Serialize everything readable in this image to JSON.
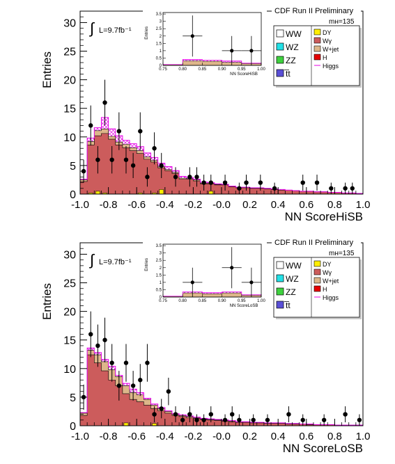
{
  "colors": {
    "WW": "#ffffff",
    "WZ": "#22e0e6",
    "ZZ": "#3ed13e",
    "tt": "#5a4fd6",
    "DY": "#ffee00",
    "Wgamma": "#cc5c5c",
    "Wjet": "#ddb68a",
    "H": "#e60000",
    "Higgs": "#e600e6",
    "data": "#000000"
  },
  "charts": [
    {
      "type": "bar",
      "experiment": "CDF Run II Preliminary",
      "lumi": "L=9.7fb⁻¹",
      "mass": "mʜ=135",
      "ylabel": "Entries",
      "xlabel": "NN ScoreHiSB",
      "xlim": [
        -1.0,
        1.0
      ],
      "ylim": [
        0,
        32
      ],
      "xticks": [
        "-1.0",
        "-0.8",
        "-0.6",
        "-0.4",
        "-0.2",
        "-0.0",
        "0.2",
        "0.4",
        "0.6",
        "0.8",
        "1.0"
      ],
      "yticks": [
        "0",
        "5",
        "10",
        "15",
        "20",
        "25",
        "30"
      ],
      "legend": {
        "col1": [
          {
            "label": "WW",
            "key": "WW"
          },
          {
            "label": "WZ",
            "key": "WZ"
          },
          {
            "label": "ZZ",
            "key": "ZZ"
          },
          {
            "label": "t̅t",
            "key": "tt"
          }
        ],
        "col2": [
          {
            "label": "DY",
            "key": "DY"
          },
          {
            "label": "Wγ",
            "key": "Wgamma"
          },
          {
            "label": "W+jet",
            "key": "Wjet"
          },
          {
            "label": "H",
            "key": "H"
          },
          {
            "label": "Higgs",
            "key": "Higgs"
          }
        ]
      },
      "chart_data": {
        "type": "bar",
        "bin_edges": [
          -1.0,
          -0.95,
          -0.9,
          -0.85,
          -0.8,
          -0.75,
          -0.7,
          -0.65,
          -0.6,
          -0.55,
          -0.5,
          -0.45,
          -0.4,
          -0.35,
          -0.3,
          -0.25,
          -0.2,
          -0.15,
          -0.1,
          -0.05,
          0.0,
          0.05,
          0.1,
          0.15,
          0.2,
          0.25,
          0.3,
          0.35,
          0.4,
          0.45,
          0.5,
          0.55,
          0.6,
          0.65,
          0.7,
          0.75,
          0.8,
          0.85,
          0.9,
          0.95,
          1.0
        ],
        "series": [
          {
            "name": "Wγ",
            "values": [
              2.2,
              8.6,
              10.2,
              10.6,
              9.6,
              8.6,
              8.1,
              7.6,
              7.1,
              6.1,
              5.6,
              4.6,
              4.1,
              3.6,
              2.6,
              2.6,
              2.3,
              1.8,
              1.8,
              1.6,
              1.6,
              1.3,
              1.1,
              1.1,
              1.0,
              1.0,
              0.9,
              0.8,
              0.7,
              0.7,
              0.6,
              0.5,
              0.5,
              0.4,
              0.4,
              0.3,
              0.3,
              0.2,
              0.2,
              0.1
            ]
          },
          {
            "name": "W+jet",
            "values": [
              0.3,
              0.6,
              0.9,
              0.8,
              0.5,
              0.5,
              0.6,
              0.5,
              0.5,
              0.4,
              0.3,
              0.2,
              0.2,
              0.2,
              0.2,
              0.1,
              0.2,
              0.1,
              0.1,
              0.1,
              0.1,
              0.1,
              0.1,
              0.1,
              0.0,
              0.0,
              0.0,
              0.0,
              0.0,
              0.0,
              0.0,
              0.0,
              0.0,
              0.0,
              0.0,
              0.0,
              0.0,
              0.0,
              0.0,
              0.0
            ]
          },
          {
            "name": "DY",
            "values": [
              0.0,
              0.2,
              0.5,
              0.2,
              0.0,
              0.0,
              0.0,
              0.0,
              0.2,
              0.0,
              0.2,
              0.8,
              0.0,
              0.0,
              0.0,
              0.0,
              0.0,
              0.0,
              0.5,
              0.0,
              0.0,
              0.0,
              0.0,
              0.0,
              0.0,
              0.0,
              0.0,
              0.0,
              0.0,
              0.0,
              0.0,
              0.0,
              0.0,
              0.0,
              0.0,
              0.0,
              0.0,
              0.0,
              0.0,
              0.0
            ]
          },
          {
            "name": "Higgs",
            "values": [
              2.6,
              9.8,
              11.6,
              13.4,
              11.4,
              10.2,
              9.4,
              8.8,
              8.3,
              7.2,
              6.4,
              5.4,
              4.8,
              4.1,
              3.1,
              2.9,
              2.6,
              2.1,
              2.0,
              1.8,
              1.7,
              1.4,
              1.2,
              1.2,
              1.1,
              1.1,
              1.0,
              0.9,
              0.8,
              0.7,
              0.6,
              0.5,
              0.5,
              0.4,
              0.4,
              0.3,
              0.3,
              0.2,
              0.2,
              0.1
            ]
          }
        ],
        "data_points": [
          {
            "x": -0.975,
            "y": 4,
            "err": 2
          },
          {
            "x": -0.925,
            "y": 12,
            "err": 3.5
          },
          {
            "x": -0.875,
            "y": 6,
            "err": 2.4
          },
          {
            "x": -0.825,
            "y": 16,
            "err": 4
          },
          {
            "x": -0.775,
            "y": 6,
            "err": 2.4
          },
          {
            "x": -0.725,
            "y": 11,
            "err": 3.3
          },
          {
            "x": -0.675,
            "y": 6,
            "err": 2.4
          },
          {
            "x": -0.625,
            "y": 5,
            "err": 2.2
          },
          {
            "x": -0.575,
            "y": 11,
            "err": 3.3
          },
          {
            "x": -0.525,
            "y": 3,
            "err": 1.7
          },
          {
            "x": -0.475,
            "y": 8,
            "err": 2.8
          },
          {
            "x": -0.425,
            "y": 5,
            "err": 2.2
          },
          {
            "x": -0.325,
            "y": 3,
            "err": 1.7
          },
          {
            "x": -0.225,
            "y": 3,
            "err": 1.7
          },
          {
            "x": -0.175,
            "y": 3,
            "err": 1.7
          },
          {
            "x": -0.125,
            "y": 2,
            "err": 1.4
          },
          {
            "x": -0.075,
            "y": 2,
            "err": 1.4
          },
          {
            "x": 0.025,
            "y": 2,
            "err": 1.4
          },
          {
            "x": 0.125,
            "y": 1,
            "err": 1
          },
          {
            "x": 0.175,
            "y": 2,
            "err": 1.4
          },
          {
            "x": 0.275,
            "y": 2,
            "err": 1.4
          },
          {
            "x": 0.375,
            "y": 1,
            "err": 1
          },
          {
            "x": 0.575,
            "y": 2,
            "err": 1.4
          },
          {
            "x": 0.675,
            "y": 2,
            "err": 1.4
          },
          {
            "x": 0.775,
            "y": 1,
            "err": 1
          },
          {
            "x": 0.875,
            "y": 1,
            "err": 1
          },
          {
            "x": 0.925,
            "y": 1,
            "err": 1
          }
        ]
      },
      "inset": {
        "ylabel": "Entries",
        "xlabel": "NN ScoreHiSB",
        "xlim": [
          0.75,
          1.0
        ],
        "ylim": [
          0,
          3.6
        ],
        "xticks": [
          "0.75",
          "0.80",
          "0.85",
          "0.90",
          "0.95",
          "1.00"
        ],
        "yticks": [
          "0",
          "0.5",
          "1",
          "1.5",
          "2",
          "2.5",
          "3",
          "3.5"
        ],
        "bin_edges": [
          0.75,
          0.8,
          0.85,
          0.9,
          0.95,
          1.0
        ],
        "stack": [
          0.05,
          0.3,
          0.28,
          0.2,
          0.12
        ],
        "higgs": [
          0.06,
          0.4,
          0.35,
          0.3,
          0.15
        ],
        "data_points": [
          {
            "x": 0.825,
            "y": 2,
            "err": 1.4
          },
          {
            "x": 0.925,
            "y": 1,
            "err": 1
          },
          {
            "x": 0.975,
            "y": 1,
            "err": 1
          }
        ]
      }
    },
    {
      "type": "bar",
      "experiment": "CDF Run II Preliminary",
      "lumi": "L=9.7fb⁻¹",
      "mass": "mʜ=135",
      "ylabel": "Entries",
      "xlabel": "NN ScoreLoSB",
      "xlim": [
        -1.0,
        1.0
      ],
      "ylim": [
        0,
        32
      ],
      "xticks": [
        "-1.0",
        "-0.8",
        "-0.6",
        "-0.4",
        "-0.2",
        "-0.0",
        "0.2",
        "0.4",
        "0.6",
        "0.8",
        "1.0"
      ],
      "yticks": [
        "0",
        "5",
        "10",
        "15",
        "20",
        "25",
        "30"
      ],
      "legend": {
        "col1": [
          {
            "label": "WW",
            "key": "WW"
          },
          {
            "label": "WZ",
            "key": "WZ"
          },
          {
            "label": "ZZ",
            "key": "ZZ"
          },
          {
            "label": "t̅t",
            "key": "tt"
          }
        ],
        "col2": [
          {
            "label": "DY",
            "key": "DY"
          },
          {
            "label": "Wγ",
            "key": "Wgamma"
          },
          {
            "label": "W+jet",
            "key": "Wjet"
          },
          {
            "label": "H",
            "key": "H"
          },
          {
            "label": "Higgs",
            "key": "Higgs"
          }
        ]
      },
      "chart_data": {
        "type": "bar",
        "bin_edges": [
          -1.0,
          -0.95,
          -0.9,
          -0.85,
          -0.8,
          -0.75,
          -0.7,
          -0.65,
          -0.6,
          -0.55,
          -0.5,
          -0.45,
          -0.4,
          -0.35,
          -0.3,
          -0.25,
          -0.2,
          -0.15,
          -0.1,
          -0.05,
          0.0,
          0.05,
          0.1,
          0.15,
          0.2,
          0.25,
          0.3,
          0.35,
          0.4,
          0.45,
          0.5,
          0.55,
          0.6,
          0.65,
          0.7,
          0.75,
          0.8,
          0.85,
          0.9,
          0.95,
          1.0
        ],
        "series": [
          {
            "name": "Wγ",
            "values": [
              1.8,
              12.4,
              11.0,
              9.6,
              8.0,
              7.0,
              5.6,
              4.6,
              4.2,
              3.6,
              3.0,
              2.6,
              2.2,
              1.8,
              1.6,
              1.4,
              1.3,
              1.1,
              1.0,
              0.9,
              0.8,
              0.7,
              0.6,
              0.6,
              0.5,
              0.5,
              0.4,
              0.4,
              0.4,
              0.3,
              0.3,
              0.3,
              0.2,
              0.2,
              0.2,
              0.2,
              0.1,
              0.1,
              0.1,
              0.1
            ]
          },
          {
            "name": "W+jet",
            "values": [
              0.4,
              0.8,
              1.4,
              1.6,
              1.8,
              1.6,
              1.4,
              1.2,
              1.2,
              1.0,
              0.6,
              0.4,
              0.3,
              0.2,
              0.2,
              0.2,
              0.1,
              0.1,
              0.1,
              0.1,
              0.1,
              0.1,
              0.0,
              0.0,
              0.0,
              0.0,
              0.0,
              0.0,
              0.0,
              0.0,
              0.0,
              0.0,
              0.0,
              0.0,
              0.0,
              0.0,
              0.0,
              0.0,
              0.0,
              0.0
            ]
          },
          {
            "name": "DY",
            "values": [
              0.0,
              0.0,
              0.0,
              0.0,
              0.0,
              0.0,
              0.5,
              0.0,
              0.0,
              0.0,
              0.4,
              0.0,
              0.0,
              0.0,
              0.0,
              0.0,
              0.0,
              0.0,
              0.0,
              0.0,
              0.0,
              0.0,
              0.0,
              0.0,
              0.0,
              0.0,
              0.0,
              0.0,
              0.0,
              0.0,
              0.0,
              0.0,
              0.0,
              0.0,
              0.0,
              0.0,
              0.0,
              0.0,
              0.0,
              0.0
            ]
          },
          {
            "name": "Higgs",
            "values": [
              2.3,
              13.6,
              12.8,
              11.6,
              10.4,
              8.8,
              7.4,
              6.4,
              5.8,
              4.8,
              3.8,
              3.2,
              2.6,
              2.1,
              1.9,
              1.7,
              1.5,
              1.3,
              1.2,
              1.1,
              1.0,
              0.9,
              0.7,
              0.7,
              0.6,
              0.6,
              0.5,
              0.5,
              0.5,
              0.4,
              0.4,
              0.3,
              0.3,
              0.2,
              0.2,
              0.2,
              0.1,
              0.1,
              0.1,
              0.1
            ]
          }
        ],
        "data_points": [
          {
            "x": -0.975,
            "y": 5,
            "err": 2.2
          },
          {
            "x": -0.925,
            "y": 16,
            "err": 4
          },
          {
            "x": -0.875,
            "y": 14,
            "err": 3.7
          },
          {
            "x": -0.825,
            "y": 15,
            "err": 3.9
          },
          {
            "x": -0.775,
            "y": 11,
            "err": 3.3
          },
          {
            "x": -0.725,
            "y": 7,
            "err": 2.6
          },
          {
            "x": -0.675,
            "y": 11,
            "err": 3.3
          },
          {
            "x": -0.625,
            "y": 7,
            "err": 2.6
          },
          {
            "x": -0.575,
            "y": 8,
            "err": 2.8
          },
          {
            "x": -0.525,
            "y": 11,
            "err": 3.3
          },
          {
            "x": -0.475,
            "y": 2,
            "err": 1.4
          },
          {
            "x": -0.425,
            "y": 3,
            "err": 1.7
          },
          {
            "x": -0.375,
            "y": 6,
            "err": 2.4
          },
          {
            "x": -0.325,
            "y": 2,
            "err": 1.4
          },
          {
            "x": -0.275,
            "y": 1,
            "err": 1
          },
          {
            "x": -0.225,
            "y": 2,
            "err": 1.4
          },
          {
            "x": -0.175,
            "y": 1,
            "err": 1
          },
          {
            "x": -0.125,
            "y": 1,
            "err": 1
          },
          {
            "x": -0.075,
            "y": 2,
            "err": 1.4
          },
          {
            "x": 0.025,
            "y": 1,
            "err": 1
          },
          {
            "x": 0.075,
            "y": 2,
            "err": 1.4
          },
          {
            "x": 0.125,
            "y": 1,
            "err": 1
          },
          {
            "x": 0.225,
            "y": 1,
            "err": 1
          },
          {
            "x": 0.325,
            "y": 1,
            "err": 1
          },
          {
            "x": 0.475,
            "y": 2,
            "err": 1.4
          },
          {
            "x": 0.575,
            "y": 1,
            "err": 1
          },
          {
            "x": 0.725,
            "y": 1,
            "err": 1
          },
          {
            "x": 0.875,
            "y": 2,
            "err": 1.4
          },
          {
            "x": 0.975,
            "y": 1,
            "err": 1
          }
        ]
      },
      "inset": {
        "ylabel": "Entries",
        "xlabel": "NN ScoreLoSB",
        "xlim": [
          0.75,
          1.0
        ],
        "ylim": [
          0,
          3.6
        ],
        "xticks": [
          "0.75",
          "0.80",
          "0.85",
          "0.90",
          "0.95",
          "1.00"
        ],
        "yticks": [
          "0",
          "0.5",
          "1",
          "1.5",
          "2",
          "2.5",
          "3",
          "3.5"
        ],
        "bin_edges": [
          0.75,
          0.8,
          0.85,
          0.9,
          0.95,
          1.0
        ],
        "stack": [
          0.05,
          0.28,
          0.22,
          0.28,
          0.12
        ],
        "higgs": [
          0.06,
          0.35,
          0.3,
          0.35,
          0.15
        ],
        "data_points": [
          {
            "x": 0.825,
            "y": 1,
            "err": 1
          },
          {
            "x": 0.925,
            "y": 2,
            "err": 1.4
          },
          {
            "x": 0.975,
            "y": 1,
            "err": 1
          }
        ]
      }
    }
  ]
}
